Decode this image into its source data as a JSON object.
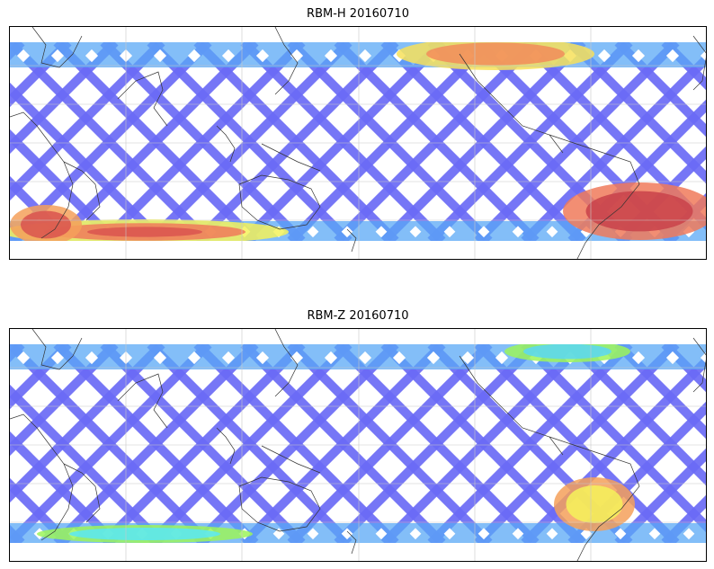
{
  "panels": [
    {
      "title": "RBM-H 20160710",
      "colormap": "jet",
      "base_color": "#6a6af5",
      "hotspots": [
        {
          "region": "north-pacific-arctic",
          "colors": [
            "#f7e15a",
            "#f28c5a"
          ]
        },
        {
          "region": "southern-indian-ocean",
          "colors": [
            "#f5f25a",
            "#f07a5a",
            "#d9534f"
          ]
        },
        {
          "region": "south-atlantic",
          "colors": [
            "#f07a5a",
            "#c9424a"
          ]
        }
      ]
    },
    {
      "title": "RBM-Z 20160710",
      "colormap": "jet",
      "base_color": "#6a6af5",
      "hotspots": [
        {
          "region": "north-atlantic",
          "colors": [
            "#9cf55a",
            "#5ad7f5"
          ]
        },
        {
          "region": "south-atlantic",
          "colors": [
            "#f5a05a",
            "#f5f25a"
          ]
        }
      ]
    }
  ],
  "colors": {
    "swath_blue": "#6a6af5",
    "swath_light": "#5aa8f5",
    "cyan": "#5ae8f5",
    "green": "#9cf55a",
    "yellow": "#f5f25a",
    "orange": "#f5a05a",
    "red": "#d9534f",
    "coastline": "#333333",
    "grid": "#c8c8c8"
  }
}
